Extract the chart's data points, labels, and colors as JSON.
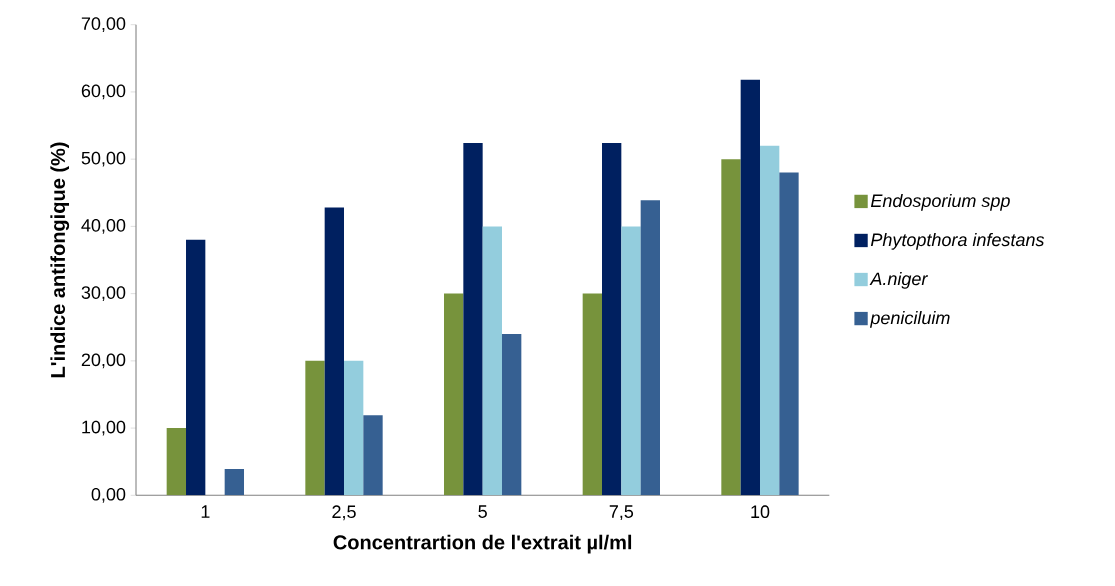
{
  "chart_data": {
    "type": "bar",
    "xlabel": "Concentrartion de l'extrait  µl/ml",
    "ylabel": "L'indice antifongique (%)",
    "categories": [
      "1",
      "2,5",
      "5",
      "7,5",
      "10"
    ],
    "series": [
      {
        "name": "Endosporium spp",
        "color": "#77933c",
        "values": [
          10,
          20,
          30,
          30,
          50
        ]
      },
      {
        "name": "Phytopthora infestans",
        "color": "#002060",
        "values": [
          38,
          42.8,
          52.4,
          52.4,
          61.8
        ]
      },
      {
        "name": "A.niger",
        "color": "#93cddd",
        "values": [
          0,
          20,
          40,
          40,
          52
        ]
      },
      {
        "name": "peniciluim",
        "color": "#366092",
        "values": [
          3.9,
          11.9,
          24,
          43.9,
          48
        ]
      }
    ],
    "ylim": [
      0,
      70
    ],
    "yticks": [
      {
        "value": 0,
        "label": "0,00"
      },
      {
        "value": 10,
        "label": "10,00"
      },
      {
        "value": 20,
        "label": "20,00"
      },
      {
        "value": 30,
        "label": "30,00"
      },
      {
        "value": 40,
        "label": "40,00"
      },
      {
        "value": 50,
        "label": "50,00"
      },
      {
        "value": 60,
        "label": "60,00"
      },
      {
        "value": 70,
        "label": "70,00"
      }
    ],
    "legend": "right",
    "grid": false
  }
}
